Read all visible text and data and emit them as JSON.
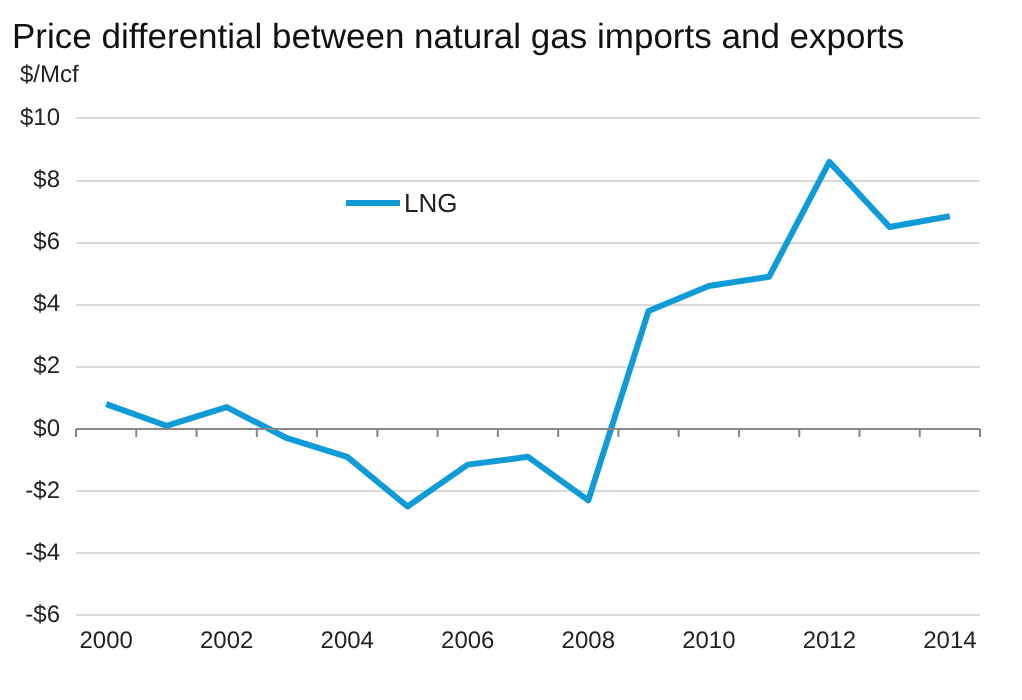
{
  "chart_data": {
    "type": "line",
    "title": "Price differential between natural gas imports and exports",
    "ylabel": "$/Mcf",
    "categories": [
      "2000",
      null,
      "2002",
      null,
      "2004",
      null,
      "2006",
      null,
      "2008",
      null,
      "2010",
      null,
      "2012",
      null,
      "2014"
    ],
    "series": [
      {
        "name": "LNG",
        "color": "#0f9ad8",
        "values": [
          0.8,
          0.1,
          0.7,
          -0.3,
          -0.9,
          -2.5,
          -1.15,
          -0.9,
          -2.3,
          3.8,
          4.6,
          4.9,
          8.6,
          6.5,
          6.85
        ]
      }
    ],
    "ylim": [
      -6,
      10
    ],
    "yticks": [
      {
        "value": -6,
        "label": "-$6"
      },
      {
        "value": -4,
        "label": "-$4"
      },
      {
        "value": -2,
        "label": "-$2"
      },
      {
        "value": 0,
        "label": "$0"
      },
      {
        "value": 2,
        "label": "$2"
      },
      {
        "value": 4,
        "label": "$4"
      },
      {
        "value": 6,
        "label": "$6"
      },
      {
        "value": 8,
        "label": "$8"
      },
      {
        "value": 10,
        "label": "$10"
      }
    ],
    "grid": "y",
    "legend": "top left",
    "marker": "none",
    "line_style": "solid"
  }
}
